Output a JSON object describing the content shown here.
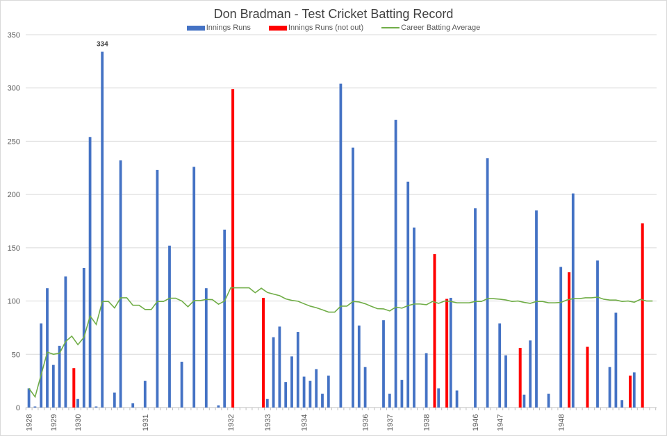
{
  "chart_data": {
    "type": "bar",
    "title": "Don Bradman - Test Cricket Batting Record",
    "legend_position": "top",
    "grid": true,
    "ylim": [
      0,
      350
    ],
    "yticks": [
      0,
      50,
      100,
      150,
      200,
      250,
      300,
      350
    ],
    "colors": {
      "runs": "#4472C4",
      "not_out": "#FF0000",
      "average": "#70AD47"
    },
    "categories": [
      "1928",
      "",
      "",
      "",
      "1929",
      "",
      "",
      "",
      "1930",
      "",
      "",
      "",
      "",
      "",
      "",
      "",
      "",
      "",
      "",
      "1931",
      "",
      "",
      "",
      "",
      "",
      "",
      "",
      "",
      "",
      "",
      "",
      "",
      "",
      "1932",
      "",
      "",
      "",
      "",
      "",
      "1933",
      "",
      "",
      "",
      "",
      "",
      "1934",
      "",
      "",
      "",
      "",
      "",
      "",
      "",
      "",
      "",
      "1936",
      "",
      "",
      "",
      "1937",
      "",
      "",
      "",
      "",
      "",
      "1938",
      "",
      "",
      "",
      "",
      "",
      "",
      "",
      "1946",
      "",
      "",
      "",
      "1947",
      "",
      "",
      "",
      "",
      "",
      "",
      "",
      "",
      "",
      "1948",
      "",
      "",
      "",
      "",
      "",
      "",
      "",
      "",
      "",
      "",
      "",
      "",
      "",
      "",
      ""
    ],
    "series": [
      {
        "name": "Innings Runs",
        "type": "bar",
        "values": [
          18,
          1,
          79,
          112,
          40,
          58,
          123,
          null,
          8,
          131,
          254,
          1,
          334,
          null,
          14,
          232,
          null,
          4,
          null,
          25,
          null,
          223,
          null,
          152,
          null,
          43,
          null,
          226,
          null,
          112,
          null,
          2,
          167,
          null,
          null,
          null,
          null,
          null,
          null,
          8,
          66,
          76,
          24,
          48,
          71,
          29,
          25,
          36,
          13,
          30,
          null,
          304,
          null,
          244,
          77,
          38,
          null,
          null,
          82,
          13,
          270,
          26,
          212,
          169,
          null,
          51,
          null,
          18,
          null,
          103,
          16,
          null,
          null,
          187,
          null,
          234,
          null,
          79,
          49,
          null,
          null,
          12,
          63,
          185,
          null,
          13,
          null,
          132,
          null,
          201,
          null,
          null,
          null,
          138,
          null,
          38,
          89,
          7,
          null,
          33,
          null,
          null,
          null
        ]
      },
      {
        "name": "Innings Runs (not out)",
        "type": "bar",
        "values": [
          null,
          null,
          null,
          null,
          null,
          null,
          null,
          37,
          null,
          null,
          null,
          null,
          null,
          null,
          null,
          null,
          null,
          null,
          null,
          null,
          null,
          null,
          null,
          null,
          null,
          null,
          null,
          null,
          null,
          null,
          null,
          null,
          null,
          299,
          null,
          null,
          null,
          null,
          103,
          null,
          null,
          null,
          null,
          null,
          null,
          null,
          null,
          null,
          null,
          null,
          null,
          null,
          null,
          null,
          null,
          null,
          null,
          null,
          null,
          null,
          null,
          null,
          null,
          null,
          null,
          null,
          144,
          null,
          102,
          null,
          null,
          null,
          null,
          null,
          null,
          null,
          null,
          null,
          null,
          null,
          56,
          null,
          null,
          null,
          null,
          null,
          null,
          null,
          127,
          null,
          null,
          57,
          null,
          null,
          null,
          null,
          null,
          null,
          30,
          null,
          173,
          null,
          null
        ]
      },
      {
        "name": "Career Batting Average",
        "type": "line",
        "values": [
          18,
          10,
          31,
          52,
          50,
          51,
          62,
          67,
          59,
          66,
          86,
          78,
          99.6,
          99.6,
          93.5,
          103,
          103,
          96,
          96,
          92,
          92,
          99.6,
          99.6,
          102.6,
          102.6,
          100,
          94.6,
          100.4,
          100.4,
          101.5,
          101.3,
          97,
          100,
          112.4,
          112.4,
          112.4,
          112.4,
          107.8,
          112,
          108,
          106.5,
          105,
          102,
          100.6,
          99.8,
          97.4,
          95.2,
          93.7,
          91.7,
          89.6,
          89.6,
          95.2,
          95.2,
          99.6,
          99.1,
          97.4,
          95,
          92.8,
          92.6,
          90.7,
          94.3,
          93.3,
          95.7,
          97.2,
          97.2,
          96.5,
          99.6,
          97.8,
          100,
          99.6,
          98.3,
          98.3,
          98.3,
          99.6,
          99.6,
          102.2,
          102.2,
          101.7,
          101,
          99.6,
          100,
          98.7,
          97.8,
          99.6,
          99.6,
          98.3,
          98.3,
          98.7,
          101,
          102.2,
          102.2,
          103,
          103,
          103.7,
          101.7,
          100.9,
          100.9,
          99.6,
          100,
          98.9,
          101.5,
          100,
          100
        ]
      }
    ],
    "annotations": [
      {
        "label": "334"
      }
    ]
  }
}
